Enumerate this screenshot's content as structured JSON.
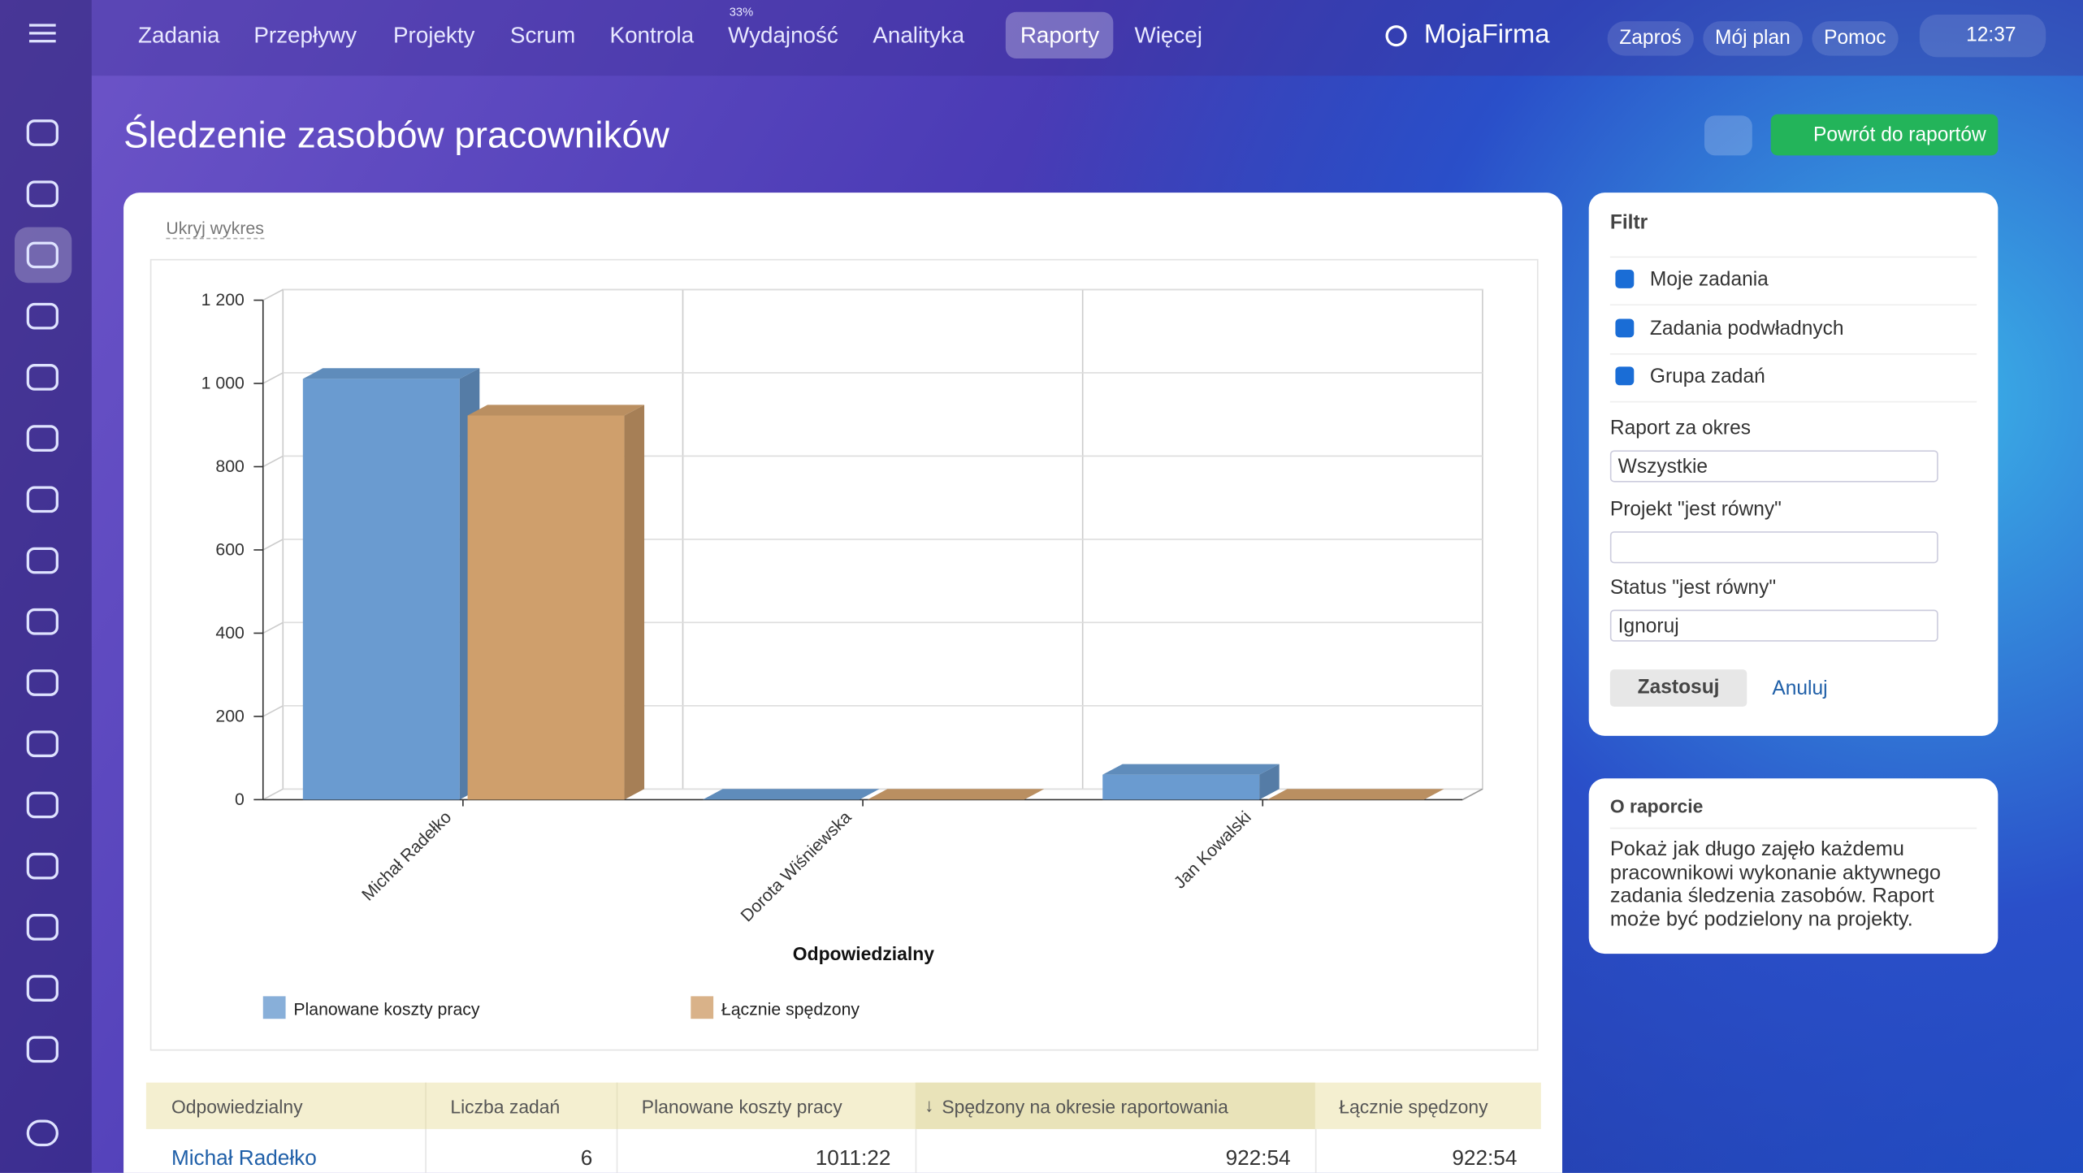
{
  "nav": {
    "menu": [
      "Zadania",
      "Przepływy",
      "Projekty",
      "Scrum",
      "Kontrola",
      "Wydajność",
      "Analityka",
      "Raporty",
      "Więcej"
    ],
    "badge": "33%",
    "brand": "MojaFirma",
    "buttons": [
      "Zaproś",
      "Mój plan",
      "Pomoc"
    ],
    "time": "12:37"
  },
  "header": {
    "title": "Śledzenie zasobów pracowników",
    "back": "Powrót do raportów",
    "hide_chart": "Ukryj wykres"
  },
  "chart_data": {
    "type": "bar",
    "x_label": "Odpowiedzialny",
    "categories": [
      "Michał Radełko",
      "Dorota Wiśniewska",
      "Jan Kowalski"
    ],
    "series": [
      {
        "name": "Planowane koszty pracy",
        "color": "#6a9bd0",
        "values": [
          1011,
          0,
          60
        ]
      },
      {
        "name": "Łącznie spędzony",
        "color": "#cf9f6c",
        "values": [
          923,
          0,
          0
        ]
      }
    ],
    "ylim": [
      0,
      1200
    ],
    "yticks": [
      0,
      200,
      400,
      600,
      800,
      {
        "value": 1000,
        "label": "1 000"
      },
      {
        "value": 1200,
        "label": "1 200"
      }
    ],
    "grid": true
  },
  "filter": {
    "title": "Filtr",
    "checks": [
      "Moje zadania",
      "Zadania podwładnych",
      "Grupa zadań"
    ],
    "period_label": "Raport za okres",
    "period": "Wszystkie",
    "project_label": "Projekt \"jest równy\"",
    "status_label": "Status \"jest równy\"",
    "status": "Ignoruj",
    "apply": "Zastosuj",
    "cancel": "Anuluj"
  },
  "about": {
    "title": "O raporcie",
    "text": "Pokaż jak długo zajęło każdemu pracownikowi wykonanie aktywnego zadania śledzenia zasobów. Raport może być podzielony na projekty."
  },
  "table": {
    "header": [
      "Odpowiedzialny",
      "Liczba zadań",
      "Planowane koszty pracy",
      "Spędzony na okresie raportowania",
      "Łącznie spędzony"
    ],
    "rows": [
      [
        "Michał Radełko",
        "6",
        "1011:22",
        "922:54",
        "922:54"
      ]
    ]
  }
}
